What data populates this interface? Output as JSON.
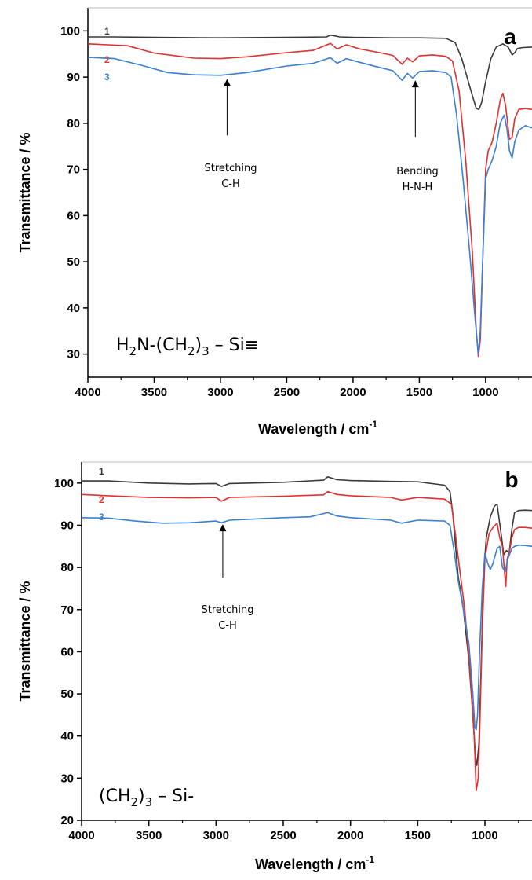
{
  "chart_data": [
    {
      "type": "line",
      "panel_label": "a",
      "xlabel": "Wavelength / cm",
      "xlabel_sup": "-1",
      "ylabel": "Transmittance / %",
      "xlim": [
        4000,
        650
      ],
      "ylim": [
        25,
        105
      ],
      "xticks": [
        "4000",
        "3500",
        "3000",
        "2500",
        "2000",
        "1500",
        "1000"
      ],
      "yticks": [
        "100",
        "90",
        "80",
        "70",
        "60",
        "50",
        "40",
        "30"
      ],
      "formula": {
        "p1": "H",
        "s1": "2",
        "p2": "N-(CH",
        "s2": "2",
        "p3": ")",
        "s3": "3",
        "p4": " – Si≡"
      },
      "annotations": [
        {
          "line1": "Stretching",
          "line2": "C-H",
          "x": 2950,
          "y": 90.3
        },
        {
          "line1": "Bending",
          "line2": "H-N-H",
          "x": 1530,
          "y": 90.0
        }
      ],
      "series": [
        {
          "name": "1",
          "color": "#3a3a3a",
          "points": [
            [
              4000,
              98.7
            ],
            [
              3800,
              98.7
            ],
            [
              3500,
              98.6
            ],
            [
              3000,
              98.5
            ],
            [
              2500,
              98.6
            ],
            [
              2200,
              98.7
            ],
            [
              2170,
              99.1
            ],
            [
              2100,
              98.7
            ],
            [
              2000,
              98.6
            ],
            [
              1700,
              98.5
            ],
            [
              1500,
              98.5
            ],
            [
              1300,
              98.4
            ],
            [
              1230,
              97.5
            ],
            [
              1180,
              94.0
            ],
            [
              1140,
              90.0
            ],
            [
              1100,
              86.0
            ],
            [
              1070,
              83.2
            ],
            [
              1050,
              83.0
            ],
            [
              1030,
              84.5
            ],
            [
              1000,
              89.0
            ],
            [
              960,
              94.0
            ],
            [
              920,
              96.5
            ],
            [
              870,
              97.2
            ],
            [
              830,
              96.5
            ],
            [
              800,
              94.8
            ],
            [
              780,
              95.3
            ],
            [
              760,
              96.2
            ],
            [
              720,
              96.4
            ],
            [
              650,
              96.5
            ]
          ]
        },
        {
          "name": "2",
          "color": "#e03030",
          "points": [
            [
              4000,
              97.2
            ],
            [
              3700,
              96.8
            ],
            [
              3500,
              95.2
            ],
            [
              3200,
              94.1
            ],
            [
              3000,
              94.0
            ],
            [
              2800,
              94.4
            ],
            [
              2500,
              95.3
            ],
            [
              2300,
              95.8
            ],
            [
              2170,
              97.3
            ],
            [
              2120,
              96.1
            ],
            [
              2050,
              97.0
            ],
            [
              1950,
              96.1
            ],
            [
              1800,
              95.3
            ],
            [
              1700,
              94.7
            ],
            [
              1630,
              92.8
            ],
            [
              1590,
              94.1
            ],
            [
              1550,
              93.3
            ],
            [
              1500,
              94.6
            ],
            [
              1400,
              94.8
            ],
            [
              1300,
              94.5
            ],
            [
              1250,
              93.5
            ],
            [
              1200,
              87.0
            ],
            [
              1150,
              72.0
            ],
            [
              1100,
              52.0
            ],
            [
              1070,
              35.0
            ],
            [
              1055,
              29.5
            ],
            [
              1040,
              33.0
            ],
            [
              1020,
              52.0
            ],
            [
              1000,
              70.0
            ],
            [
              980,
              74.0
            ],
            [
              950,
              76.0
            ],
            [
              920,
              80.0
            ],
            [
              890,
              85.0
            ],
            [
              870,
              86.5
            ],
            [
              850,
              84.0
            ],
            [
              820,
              76.5
            ],
            [
              800,
              77.0
            ],
            [
              780,
              81.0
            ],
            [
              750,
              83.0
            ],
            [
              700,
              83.2
            ],
            [
              650,
              83.0
            ]
          ]
        },
        {
          "name": "3",
          "color": "#3a7fd4",
          "points": [
            [
              4000,
              94.3
            ],
            [
              3800,
              94.0
            ],
            [
              3600,
              92.6
            ],
            [
              3400,
              91.0
            ],
            [
              3200,
              90.5
            ],
            [
              3000,
              90.4
            ],
            [
              2800,
              91.0
            ],
            [
              2500,
              92.4
            ],
            [
              2300,
              93.0
            ],
            [
              2170,
              94.2
            ],
            [
              2120,
              93.0
            ],
            [
              2050,
              94.0
            ],
            [
              1950,
              93.2
            ],
            [
              1800,
              92.1
            ],
            [
              1700,
              91.4
            ],
            [
              1630,
              89.3
            ],
            [
              1590,
              90.8
            ],
            [
              1550,
              89.8
            ],
            [
              1500,
              91.2
            ],
            [
              1400,
              91.4
            ],
            [
              1300,
              91.0
            ],
            [
              1260,
              90.0
            ],
            [
              1220,
              82.0
            ],
            [
              1170,
              68.0
            ],
            [
              1120,
              52.0
            ],
            [
              1080,
              38.0
            ],
            [
              1055,
              30.0
            ],
            [
              1040,
              35.0
            ],
            [
              1020,
              52.0
            ],
            [
              1000,
              68.0
            ],
            [
              980,
              70.0
            ],
            [
              950,
              72.0
            ],
            [
              920,
              75.0
            ],
            [
              890,
              80.0
            ],
            [
              860,
              81.8
            ],
            [
              840,
              79.0
            ],
            [
              820,
              74.0
            ],
            [
              800,
              72.5
            ],
            [
              780,
              76.0
            ],
            [
              750,
              78.5
            ],
            [
              700,
              79.5
            ],
            [
              650,
              79.0
            ]
          ]
        }
      ]
    },
    {
      "type": "line",
      "panel_label": "b",
      "xlabel": "Wavelength / cm",
      "xlabel_sup": "-1",
      "ylabel": "Transmittance / %",
      "xlim": [
        4000,
        650
      ],
      "ylim": [
        20,
        105
      ],
      "xticks": [
        "4000",
        "3500",
        "3000",
        "2500",
        "2000",
        "1500",
        "1000"
      ],
      "yticks": [
        "100",
        "90",
        "80",
        "70",
        "60",
        "50",
        "40",
        "30",
        "20"
      ],
      "formula": {
        "p1": "(CH",
        "s1": "2",
        "p2": ")",
        "s2": "3",
        "p3": " – Si-"
      },
      "annotations": [
        {
          "line1": "Stretching",
          "line2": "C-H",
          "x": 2950,
          "y": 91.0
        }
      ],
      "series": [
        {
          "name": "1",
          "color": "#3a3a3a",
          "points": [
            [
              4000,
              100.5
            ],
            [
              3800,
              100.5
            ],
            [
              3500,
              100.0
            ],
            [
              3200,
              99.8
            ],
            [
              3000,
              99.9
            ],
            [
              2960,
              99.2
            ],
            [
              2900,
              99.9
            ],
            [
              2500,
              100.2
            ],
            [
              2200,
              100.7
            ],
            [
              2170,
              101.5
            ],
            [
              2100,
              100.8
            ],
            [
              2000,
              100.6
            ],
            [
              1700,
              100.4
            ],
            [
              1500,
              100.3
            ],
            [
              1300,
              99.5
            ],
            [
              1260,
              98.0
            ],
            [
              1240,
              93.0
            ],
            [
              1200,
              78.0
            ],
            [
              1160,
              70.0
            ],
            [
              1120,
              58.0
            ],
            [
              1090,
              45.0
            ],
            [
              1070,
              35.0
            ],
            [
              1060,
              33.0
            ],
            [
              1045,
              38.0
            ],
            [
              1030,
              55.0
            ],
            [
              1010,
              78.0
            ],
            [
              990,
              87.0
            ],
            [
              960,
              92.0
            ],
            [
              930,
              94.5
            ],
            [
              910,
              95.0
            ],
            [
              880,
              88.0
            ],
            [
              860,
              83.0
            ],
            [
              840,
              84.0
            ],
            [
              820,
              83.5
            ],
            [
              800,
              89.0
            ],
            [
              780,
              93.0
            ],
            [
              750,
              93.5
            ],
            [
              700,
              93.6
            ],
            [
              650,
              93.5
            ]
          ]
        },
        {
          "name": "2",
          "color": "#e03030",
          "points": [
            [
              4000,
              97.3
            ],
            [
              3800,
              97.0
            ],
            [
              3500,
              96.6
            ],
            [
              3200,
              96.5
            ],
            [
              3000,
              96.6
            ],
            [
              2960,
              95.7
            ],
            [
              2900,
              96.6
            ],
            [
              2500,
              96.9
            ],
            [
              2200,
              97.2
            ],
            [
              2170,
              98.0
            ],
            [
              2100,
              97.3
            ],
            [
              2000,
              97.0
            ],
            [
              1700,
              96.6
            ],
            [
              1620,
              96.0
            ],
            [
              1500,
              96.6
            ],
            [
              1300,
              96.2
            ],
            [
              1250,
              95.0
            ],
            [
              1220,
              88.0
            ],
            [
              1190,
              80.0
            ],
            [
              1150,
              70.0
            ],
            [
              1110,
              55.0
            ],
            [
              1080,
              40.0
            ],
            [
              1065,
              27.0
            ],
            [
              1050,
              30.0
            ],
            [
              1040,
              40.0
            ],
            [
              1020,
              65.0
            ],
            [
              1000,
              82.0
            ],
            [
              970,
              88.0
            ],
            [
              940,
              89.5
            ],
            [
              910,
              90.5
            ],
            [
              890,
              87.0
            ],
            [
              870,
              85.0
            ],
            [
              855,
              79.0
            ],
            [
              845,
              75.5
            ],
            [
              835,
              82.0
            ],
            [
              820,
              83.5
            ],
            [
              800,
              87.0
            ],
            [
              780,
              89.0
            ],
            [
              750,
              89.5
            ],
            [
              700,
              89.5
            ],
            [
              650,
              89.3
            ]
          ]
        },
        {
          "name": "3",
          "color": "#3a7fd4",
          "points": [
            [
              4000,
              91.8
            ],
            [
              3800,
              91.7
            ],
            [
              3600,
              91.0
            ],
            [
              3400,
              90.5
            ],
            [
              3200,
              90.6
            ],
            [
              3000,
              91.0
            ],
            [
              2960,
              90.6
            ],
            [
              2900,
              91.2
            ],
            [
              2500,
              91.8
            ],
            [
              2300,
              92.0
            ],
            [
              2170,
              93.0
            ],
            [
              2100,
              92.2
            ],
            [
              2000,
              91.8
            ],
            [
              1700,
              91.2
            ],
            [
              1620,
              90.5
            ],
            [
              1500,
              91.2
            ],
            [
              1300,
              91.0
            ],
            [
              1260,
              90.0
            ],
            [
              1230,
              84.0
            ],
            [
              1200,
              77.0
            ],
            [
              1160,
              70.0
            ],
            [
              1120,
              62.0
            ],
            [
              1090,
              50.0
            ],
            [
              1075,
              42.0
            ],
            [
              1065,
              41.5
            ],
            [
              1055,
              45.0
            ],
            [
              1040,
              60.0
            ],
            [
              1020,
              75.0
            ],
            [
              1000,
              83.5
            ],
            [
              980,
              81.0
            ],
            [
              960,
              79.5
            ],
            [
              940,
              81.0
            ],
            [
              910,
              84.5
            ],
            [
              890,
              85.0
            ],
            [
              870,
              80.0
            ],
            [
              850,
              79.0
            ],
            [
              830,
              82.0
            ],
            [
              800,
              84.5
            ],
            [
              780,
              85.0
            ],
            [
              750,
              85.3
            ],
            [
              700,
              85.2
            ],
            [
              650,
              85.0
            ]
          ]
        }
      ]
    }
  ]
}
